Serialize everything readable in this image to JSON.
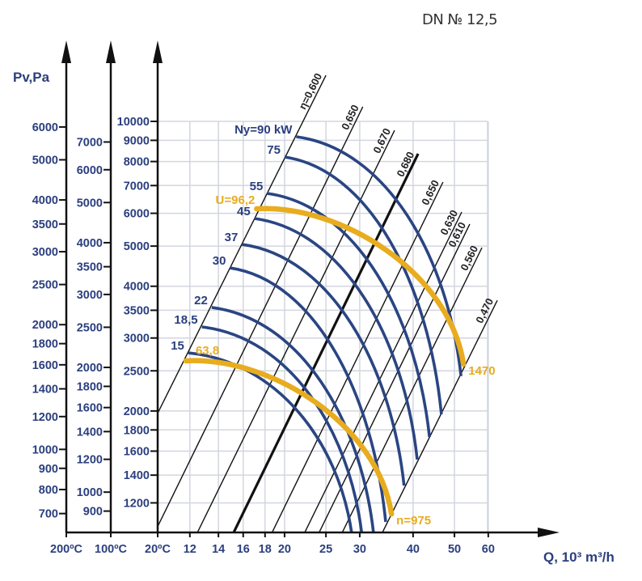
{
  "chart_data": {
    "type": "line",
    "title": "DN № 12,5",
    "xlabel": "Q, 10³ m³/h",
    "ylabel": "Pv,Pa",
    "x_scale": "log",
    "y_scale": "log",
    "xlim": [
      10,
      65
    ],
    "ylim": [
      1000,
      10000
    ],
    "grid": true,
    "x_ticks": [
      "12",
      "14",
      "16",
      "18",
      "20",
      "25",
      "30",
      "40",
      "50",
      "60"
    ],
    "x_tick_values": [
      12,
      14,
      16,
      18,
      20,
      25,
      30,
      40,
      50,
      60
    ],
    "temperature_axes": [
      {
        "label": "200ºC",
        "density_ratio": 0.619,
        "ticks": [
          6000,
          5000,
          4000,
          3500,
          3000,
          2500,
          2000,
          1800,
          1600,
          1400,
          1200,
          1000,
          900,
          800,
          700
        ]
      },
      {
        "label": "100ºC",
        "density_ratio": 0.785,
        "ticks": [
          7000,
          6000,
          5000,
          4000,
          3500,
          3000,
          2500,
          2000,
          1800,
          1600,
          1400,
          1200,
          1000,
          900
        ]
      },
      {
        "label": "20ºC",
        "density_ratio": 1.0,
        "ticks": [
          10000,
          9000,
          8000,
          7000,
          6000,
          5000,
          4000,
          3500,
          3000,
          2500,
          2000,
          1800,
          1600,
          1400,
          1200
        ]
      }
    ],
    "efficiency_lines": [
      {
        "label": "η=0,600",
        "from": [
          10.1,
          1980
        ],
        "to": [
          25.0,
          12920
        ],
        "bold": false
      },
      {
        "label": "0,650",
        "from": [
          10.1,
          1055
        ],
        "to": [
          30.5,
          10845
        ],
        "bold": false
      },
      {
        "label": "0,670",
        "from": [
          12.5,
          1018
        ],
        "to": [
          36.2,
          9517
        ],
        "bold": false
      },
      {
        "label": "0,680",
        "from": [
          15.2,
          1018
        ],
        "to": [
          41.1,
          8354
        ],
        "bold": true
      },
      {
        "label": "0,650",
        "from": [
          18.7,
          1018
        ],
        "to": [
          47.0,
          7137
        ],
        "bold": false
      },
      {
        "label": "0,630",
        "from": [
          22.3,
          1018
        ],
        "to": [
          52.0,
          6043
        ],
        "bold": false
      },
      {
        "label": "0,610",
        "from": [
          24.1,
          1018
        ],
        "to": [
          54.3,
          5649
        ],
        "bold": false
      },
      {
        "label": "0,560",
        "from": [
          27.3,
          1018
        ],
        "to": [
          58.0,
          4958
        ],
        "bold": false
      },
      {
        "label": "0,470",
        "from": [
          33.9,
          1018
        ],
        "to": [
          63.0,
          3699
        ],
        "bold": false
      }
    ],
    "power_curves": [
      {
        "label": "Ny=90 kW",
        "start": [
          21.3,
          9180
        ],
        "end": [
          51.8,
          2427
        ]
      },
      {
        "label": "75",
        "start": [
          20.0,
          8204
        ],
        "end": [
          46.6,
          1963
        ]
      },
      {
        "label": "55",
        "start": [
          18.2,
          6702
        ],
        "end": [
          43.7,
          1730
        ]
      },
      {
        "label": "45",
        "start": [
          17.0,
          5830
        ],
        "end": [
          40.9,
          1527
        ]
      },
      {
        "label": "37",
        "start": [
          15.9,
          5047
        ],
        "end": [
          38.1,
          1321
        ]
      },
      {
        "label": "30",
        "start": [
          14.9,
          4430
        ],
        "end": [
          34.5,
          1080
        ]
      },
      {
        "label": "22",
        "start": [
          13.5,
          3556
        ],
        "end": [
          32.3,
          1019
        ]
      },
      {
        "label": "18,5",
        "start": [
          12.8,
          3191
        ],
        "end": [
          30.3,
          1019
        ]
      },
      {
        "label": "15",
        "start": [
          11.9,
          2762
        ],
        "end": [
          28.7,
          1019
        ]
      }
    ],
    "speed_curves": [
      {
        "start_label": "U=96,2",
        "end_label": "1470",
        "start": [
          17.2,
          6152
        ],
        "end": [
          52.5,
          2595
        ]
      },
      {
        "start_label": "63,8",
        "end_label": "n=975",
        "start": [
          11.75,
          2642
        ],
        "end": [
          35.6,
          1128
        ]
      }
    ],
    "colors": {
      "power": "#2a4582",
      "speed": "#e8ac1f",
      "grid": "#d3d6df",
      "text": "#2b3f7e"
    }
  }
}
